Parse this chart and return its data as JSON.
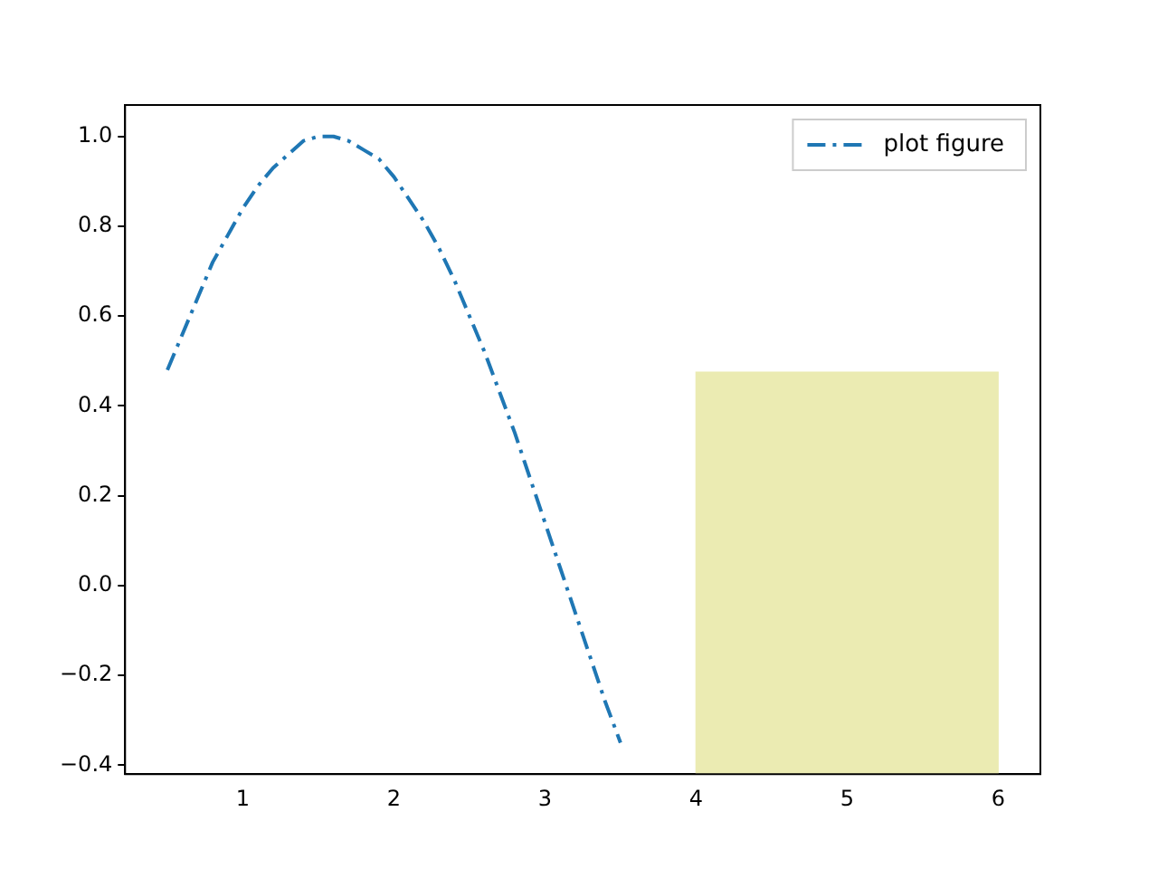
{
  "chart_data": {
    "type": "line",
    "xlim": [
      0.22,
      6.28
    ],
    "xticks": [
      1,
      2,
      3,
      4,
      5,
      6
    ],
    "ylim": [
      -0.42,
      1.07
    ],
    "yticks": [
      {
        "value": -0.4,
        "label": "−0.4"
      },
      {
        "value": -0.2,
        "label": "−0.2"
      },
      {
        "value": 0,
        "label": "0.0"
      },
      {
        "value": 0.2,
        "label": "0.2"
      },
      {
        "value": 0.4,
        "label": "0.4"
      },
      {
        "value": 0.6,
        "label": "0.6"
      },
      {
        "value": 0.8,
        "label": "0.8"
      },
      {
        "value": 1,
        "label": "1.0"
      }
    ],
    "grid": false,
    "legend": "top right",
    "series": [
      {
        "type": "bar",
        "color": "#ebebb2",
        "x": [
          5
        ],
        "base": [
          -0.42
        ],
        "values": [
          0.895
        ]
      },
      {
        "name": "plot figure",
        "color": "#1f77b4",
        "line_style": "dashed",
        "x": [
          0.5,
          0.6,
          0.7,
          0.8,
          0.9,
          1.0,
          1.1,
          1.2,
          1.3,
          1.4,
          1.5,
          1.6,
          1.7,
          1.8,
          1.9,
          2.0,
          2.1,
          2.2,
          2.3,
          2.4,
          2.5,
          2.6,
          2.7,
          2.8,
          2.9,
          3.0,
          3.1,
          3.2,
          3.3,
          3.4,
          3.5
        ],
        "values": [
          0.48,
          0.56,
          0.64,
          0.72,
          0.78,
          0.84,
          0.89,
          0.93,
          0.96,
          0.99,
          1.0,
          1.0,
          0.99,
          0.97,
          0.95,
          0.91,
          0.86,
          0.81,
          0.75,
          0.68,
          0.6,
          0.52,
          0.43,
          0.34,
          0.24,
          0.14,
          0.04,
          -0.06,
          -0.16,
          -0.26,
          -0.35
        ]
      }
    ]
  }
}
